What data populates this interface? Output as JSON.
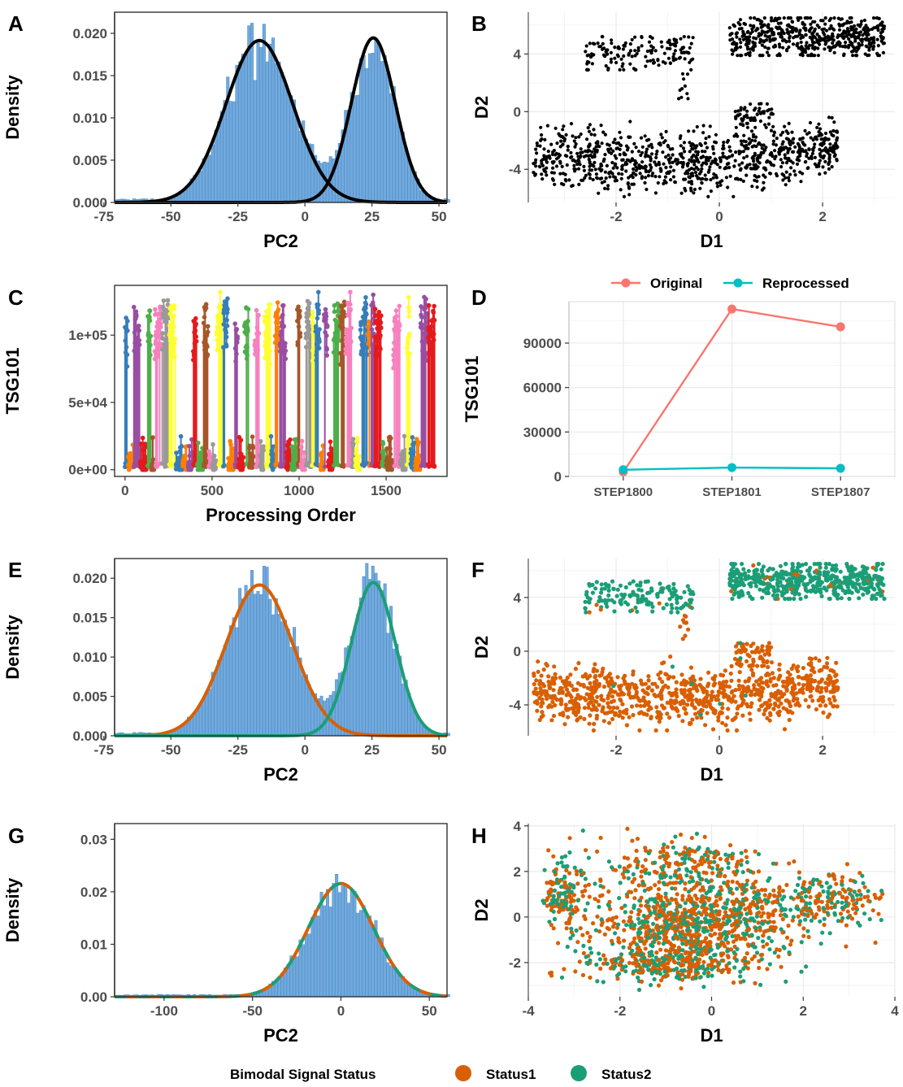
{
  "colors": {
    "hist_fill": "#5b9bd5",
    "hist_edge": "#4f8fcf",
    "density_line": "#000000",
    "status1": "#d95f02",
    "status2": "#1b9e77",
    "original": "#f8766d",
    "reprocessed": "#00bfc4",
    "grid": "#ebebeb"
  },
  "legend_bottom": {
    "title": "Bimodal Signal Status",
    "items": [
      "Status1",
      "Status2"
    ]
  },
  "legend_d": {
    "items": [
      "Original",
      "Reprocessed"
    ]
  },
  "chart_data": [
    {
      "panel": "A",
      "type": "histogram",
      "xlabel": "PC2",
      "ylabel": "Density",
      "xlim": [
        -71,
        53
      ],
      "ylim": [
        0,
        0.0225
      ],
      "xticks": [
        "-75",
        "-50",
        "-25",
        "0",
        "25",
        "50"
      ],
      "yticks": [
        "0.000",
        "0.005",
        "0.010",
        "0.015",
        "0.020"
      ],
      "components": [
        {
          "mean": -17,
          "sd": 12.5,
          "weight": 0.6,
          "peak": 0.0192
        },
        {
          "mean": 25.5,
          "sd": 8.2,
          "weight": 0.4,
          "peak": 0.0196
        }
      ],
      "curve_colors": [
        "#000000",
        "#000000"
      ]
    },
    {
      "panel": "B",
      "type": "scatter",
      "xlabel": "D1",
      "ylabel": "D2",
      "xlim": [
        -3.7,
        3.4
      ],
      "ylim": [
        -6.3,
        6.9
      ],
      "xticks": [
        "-2",
        "0",
        "2"
      ],
      "yticks": [
        "-4",
        "0",
        "4"
      ],
      "clusters": [
        {
          "x": [
            0.2,
            3.2
          ],
          "y": [
            3.9,
            6.5
          ],
          "n": 520,
          "status": "Status2"
        },
        {
          "x": [
            -2.6,
            -0.5
          ],
          "y": [
            2.9,
            5.2
          ],
          "n": 150,
          "status": "Status2"
        },
        {
          "x": [
            -0.8,
            -0.6
          ],
          "y": [
            0.9,
            2.7
          ],
          "n": 10,
          "status": "Status1"
        },
        {
          "x": [
            0.3,
            1.05
          ],
          "y": [
            -1.1,
            0.6
          ],
          "n": 60,
          "status": "Status1"
        },
        {
          "x": [
            -3.6,
            2.3
          ],
          "y": [
            -5.9,
            -0.4
          ],
          "n": 900,
          "status": "Status1"
        }
      ]
    },
    {
      "panel": "C",
      "type": "scatter-lines",
      "xlabel": "Processing Order",
      "ylabel": "TSG101",
      "xlim": [
        -60,
        1850
      ],
      "ylim": [
        -5000,
        137000
      ],
      "xticks": [
        "0",
        "500",
        "1000",
        "1500"
      ],
      "yticks": [
        "0e+00",
        "5e+04",
        "1e+05"
      ],
      "palette": [
        "#377eb8",
        "#ff7f00",
        "#984ea3",
        "#e41a1c",
        "#4daf4a",
        "#a65628",
        "#f781bf",
        "#999999",
        "#ffff33"
      ]
    },
    {
      "panel": "D",
      "type": "line",
      "xlabel": "",
      "ylabel": "TSG101",
      "categories": [
        "STEP1800",
        "STEP1801",
        "STEP1807"
      ],
      "ylim": [
        0,
        118000
      ],
      "yticks": [
        "0",
        "30000",
        "60000",
        "90000"
      ],
      "series": [
        {
          "name": "Original",
          "values": [
            3000,
            113000,
            101000
          ]
        },
        {
          "name": "Reprocessed",
          "values": [
            4500,
            6000,
            5500
          ]
        }
      ]
    },
    {
      "panel": "E",
      "type": "histogram",
      "xlabel": "PC2",
      "ylabel": "Density",
      "xlim": [
        -71,
        53
      ],
      "ylim": [
        0,
        0.0225
      ],
      "xticks": [
        "-75",
        "-50",
        "-25",
        "0",
        "25",
        "50"
      ],
      "yticks": [
        "0.000",
        "0.005",
        "0.010",
        "0.015",
        "0.020"
      ],
      "components": [
        {
          "mean": -17,
          "sd": 12.5,
          "weight": 0.6,
          "peak": 0.0192
        },
        {
          "mean": 25.5,
          "sd": 8.2,
          "weight": 0.4,
          "peak": 0.0196
        }
      ],
      "curve_colors": [
        "#d95f02",
        "#1b9e77"
      ]
    },
    {
      "panel": "F",
      "type": "scatter",
      "xlabel": "D1",
      "ylabel": "D2",
      "xlim": [
        -3.7,
        3.4
      ],
      "ylim": [
        -6.3,
        6.9
      ],
      "xticks": [
        "-2",
        "0",
        "2"
      ],
      "yticks": [
        "-4",
        "0",
        "4"
      ],
      "clusters": [
        {
          "x": [
            0.2,
            3.2
          ],
          "y": [
            3.9,
            6.5
          ],
          "n": 520,
          "status": "Status2"
        },
        {
          "x": [
            -2.6,
            -0.5
          ],
          "y": [
            2.9,
            5.2
          ],
          "n": 150,
          "status": "Status2"
        },
        {
          "x": [
            -0.8,
            -0.6
          ],
          "y": [
            0.9,
            2.7
          ],
          "n": 10,
          "status": "Status1"
        },
        {
          "x": [
            0.3,
            1.05
          ],
          "y": [
            -1.1,
            0.6
          ],
          "n": 60,
          "status": "Status1"
        },
        {
          "x": [
            -3.6,
            2.3
          ],
          "y": [
            -5.9,
            -0.4
          ],
          "n": 900,
          "status": "Status1"
        }
      ]
    },
    {
      "panel": "G",
      "type": "histogram",
      "xlabel": "PC2",
      "ylabel": "Density",
      "xlim": [
        -128,
        60
      ],
      "ylim": [
        0,
        0.033
      ],
      "xticks": [
        "-100",
        "-50",
        "0",
        "50"
      ],
      "yticks": [
        "0.00",
        "0.01",
        "0.02",
        "0.03"
      ],
      "components": [
        {
          "mean": 0,
          "sd": 18.5,
          "weight": 1.0,
          "peak": 0.0215
        }
      ],
      "curve_colors": [
        "#d95f02",
        "#1b9e77"
      ],
      "dashed_overlay": true
    },
    {
      "panel": "H",
      "type": "scatter",
      "xlabel": "D1",
      "ylabel": "D2",
      "xlim": [
        -4,
        4
      ],
      "ylim": [
        -3.5,
        4.1
      ],
      "xticks": [
        "-4",
        "-2",
        "0",
        "2",
        "4"
      ],
      "yticks": [
        "-2",
        "0",
        "2",
        "4"
      ],
      "mixed_points": 1800
    }
  ]
}
